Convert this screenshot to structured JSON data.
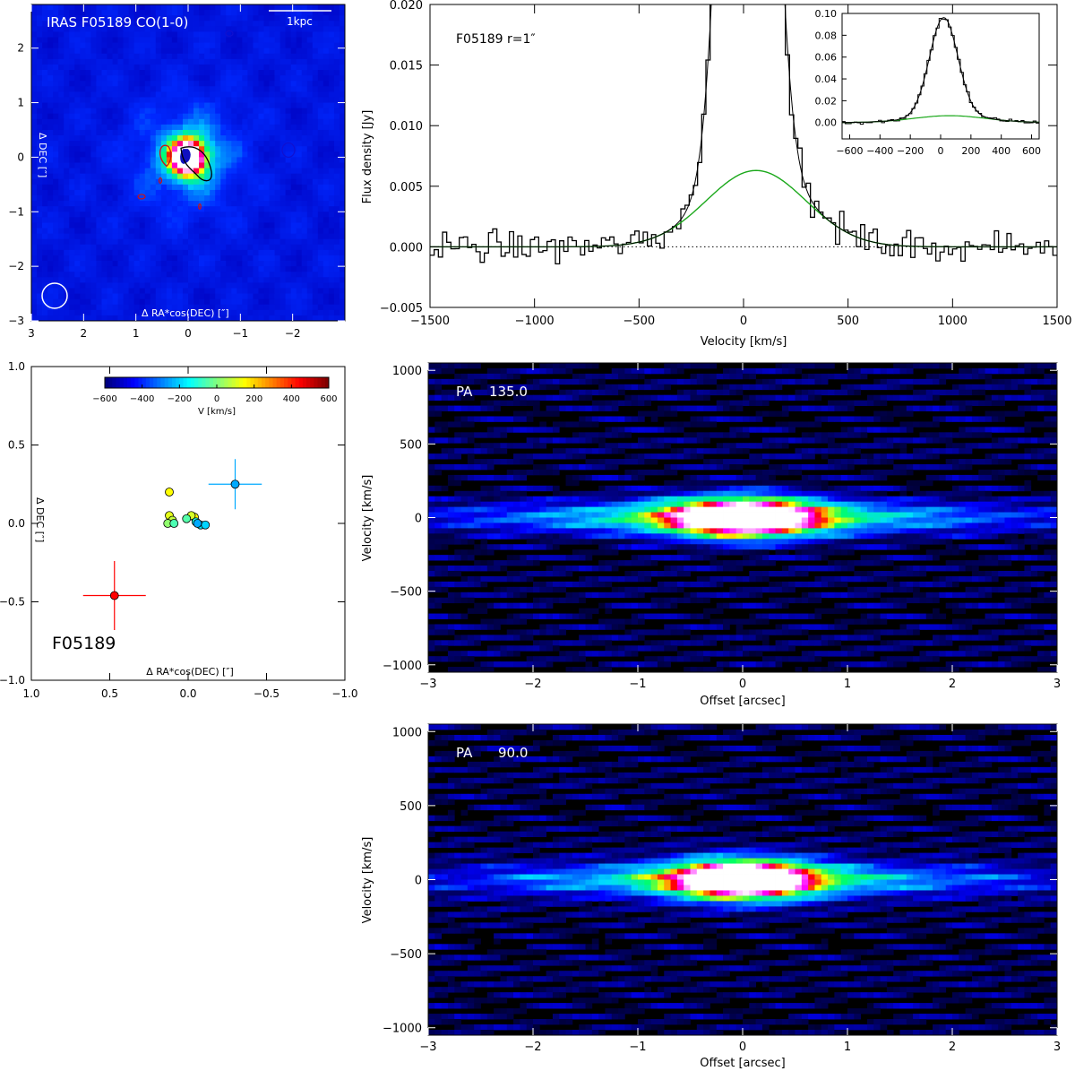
{
  "chart_data": [
    {
      "id": "co-map",
      "type": "heatmap",
      "title": "IRAS F05189 CO(1-0)",
      "scalebar_label": "1kpc",
      "xlabel": "Δ RA*cos(DEC) [″]",
      "ylabel": "Δ DEC [″]",
      "xlim": [
        3,
        -3
      ],
      "ylim": [
        -3,
        2.8
      ],
      "xticks": [
        3,
        2,
        1,
        0,
        -1,
        -2
      ],
      "yticks": [
        2,
        1,
        0,
        -1,
        -2,
        -3
      ],
      "beam_position": "bottom-left",
      "peak": {
        "x": 0,
        "y": 0
      },
      "colors": {
        "map_low": "#0000c8",
        "contour_red": "#d01010",
        "contour_black": "#000000",
        "contour_blue": "#1010d0"
      }
    },
    {
      "id": "spectrum",
      "type": "line",
      "label": "F05189 r=1″",
      "xlabel": "Velocity [km/s]",
      "ylabel": "Flux density [Jy]",
      "xlim": [
        -1500,
        1500
      ],
      "ylim": [
        -0.005,
        0.02
      ],
      "xticks": [
        -1500,
        -1000,
        -500,
        0,
        500,
        1000,
        1500
      ],
      "yticks": [
        -0.005,
        0.0,
        0.005,
        0.01,
        0.015,
        0.02
      ],
      "ytick_labels": [
        "−0.005",
        "0.000",
        "0.005",
        "0.010",
        "0.015",
        "0.020"
      ],
      "grid": false,
      "series": [
        {
          "role": "data",
          "style": "histogram",
          "color": "#000000"
        },
        {
          "role": "broad-gaussian-fit",
          "color": "#1aa81a",
          "amplitude": 0.0063,
          "center": 60,
          "fwhm": 560
        }
      ],
      "inset": {
        "xlim": [
          -650,
          650
        ],
        "ylim": [
          -0.015,
          0.1
        ],
        "xticks": [
          -600,
          -400,
          -200,
          0,
          200,
          400,
          600
        ],
        "yticks": [
          0.0,
          0.02,
          0.04,
          0.06,
          0.08,
          0.1
        ],
        "ytick_labels": [
          "0.00",
          "0.02",
          "0.04",
          "0.06",
          "0.08",
          "0.10"
        ],
        "narrow_peak": 0.09,
        "narrow_center": 20,
        "narrow_fwhm": 220
      }
    },
    {
      "id": "centroids",
      "type": "scatter",
      "label": "F05189",
      "xlabel": "Δ RA*cos(DEC) [″]",
      "ylabel": "Δ DEC [″]",
      "xlim": [
        1.0,
        -1.0
      ],
      "ylim": [
        -1.0,
        1.0
      ],
      "xticks": [
        1.0,
        0.5,
        0.0,
        -0.5,
        -1.0
      ],
      "xtick_labels": [
        "1.0",
        "0.5",
        "0.0",
        "−0.5",
        "−1.0"
      ],
      "yticks": [
        1.0,
        0.5,
        0.0,
        -0.5,
        -1.0
      ],
      "ytick_labels": [
        "1.0",
        "0.5",
        "0.0",
        "−0.5",
        "−1.0"
      ],
      "colorbar": {
        "label": "V [km/s]",
        "range": [
          -600,
          600
        ],
        "ticks": [
          -600,
          -400,
          -200,
          0,
          200,
          400,
          600
        ],
        "tick_labels": [
          "−600",
          "−400",
          "−200",
          "0",
          "200",
          "400",
          "600"
        ]
      },
      "points": [
        {
          "x": 0.47,
          "y": -0.46,
          "xerr": 0.2,
          "yerr": 0.22,
          "v": 450
        },
        {
          "x": -0.3,
          "y": 0.25,
          "xerr": 0.17,
          "yerr": 0.16,
          "v": -250
        },
        {
          "x": 0.12,
          "y": 0.2,
          "xerr": 0.02,
          "yerr": 0.03,
          "v": 150
        },
        {
          "x": 0.12,
          "y": 0.05,
          "xerr": 0.02,
          "yerr": 0.02,
          "v": 120
        },
        {
          "x": 0.1,
          "y": 0.02,
          "xerr": 0.02,
          "yerr": 0.02,
          "v": 80
        },
        {
          "x": 0.13,
          "y": 0.0,
          "xerr": 0.02,
          "yerr": 0.02,
          "v": 20
        },
        {
          "x": 0.09,
          "y": 0.0,
          "xerr": 0.02,
          "yerr": 0.02,
          "v": -60
        },
        {
          "x": -0.04,
          "y": 0.04,
          "xerr": 0.02,
          "yerr": 0.03,
          "v": 150
        },
        {
          "x": -0.02,
          "y": 0.05,
          "xerr": 0.02,
          "yerr": 0.02,
          "v": 100
        },
        {
          "x": 0.01,
          "y": 0.03,
          "xerr": 0.02,
          "yerr": 0.02,
          "v": -50
        },
        {
          "x": -0.05,
          "y": 0.01,
          "xerr": 0.02,
          "yerr": 0.02,
          "v": -120
        },
        {
          "x": -0.08,
          "y": -0.01,
          "xerr": 0.02,
          "yerr": 0.02,
          "v": -180
        },
        {
          "x": -0.11,
          "y": -0.01,
          "xerr": 0.02,
          "yerr": 0.02,
          "v": -200
        },
        {
          "x": -0.06,
          "y": 0.0,
          "xerr": 0.02,
          "yerr": 0.02,
          "v": -250
        }
      ]
    },
    {
      "id": "pv-135",
      "type": "heatmap",
      "label_prefix": "PA",
      "label_value": "135.0",
      "xlabel": "Offset [arcsec]",
      "ylabel": "Velocity [km/s]",
      "xlim": [
        -3,
        3
      ],
      "ylim": [
        -1050,
        1050
      ],
      "xticks": [
        -3,
        -2,
        -1,
        0,
        1,
        2,
        3
      ],
      "xtick_labels": [
        "−3",
        "−2",
        "−1",
        "0",
        "1",
        "2",
        "3"
      ],
      "yticks": [
        -1000,
        -500,
        0,
        500,
        1000
      ],
      "ytick_labels": [
        "−1000",
        "−500",
        "0",
        "500",
        "1000"
      ],
      "core_halfwidth": 0.75,
      "core_vhalf": 110
    },
    {
      "id": "pv-90",
      "type": "heatmap",
      "label_prefix": "PA",
      "label_value": "90.0",
      "xlabel": "Offset [arcsec]",
      "ylabel": "Velocity [km/s]",
      "xlim": [
        -3,
        3
      ],
      "ylim": [
        -1050,
        1050
      ],
      "xticks": [
        -3,
        -2,
        -1,
        0,
        1,
        2,
        3
      ],
      "xtick_labels": [
        "−3",
        "−2",
        "−1",
        "0",
        "1",
        "2",
        "3"
      ],
      "yticks": [
        -1000,
        -500,
        0,
        500,
        1000
      ],
      "ytick_labels": [
        "−1000",
        "−500",
        "0",
        "500",
        "1000"
      ],
      "core_halfwidth": 0.7,
      "core_vhalf": 110
    }
  ]
}
